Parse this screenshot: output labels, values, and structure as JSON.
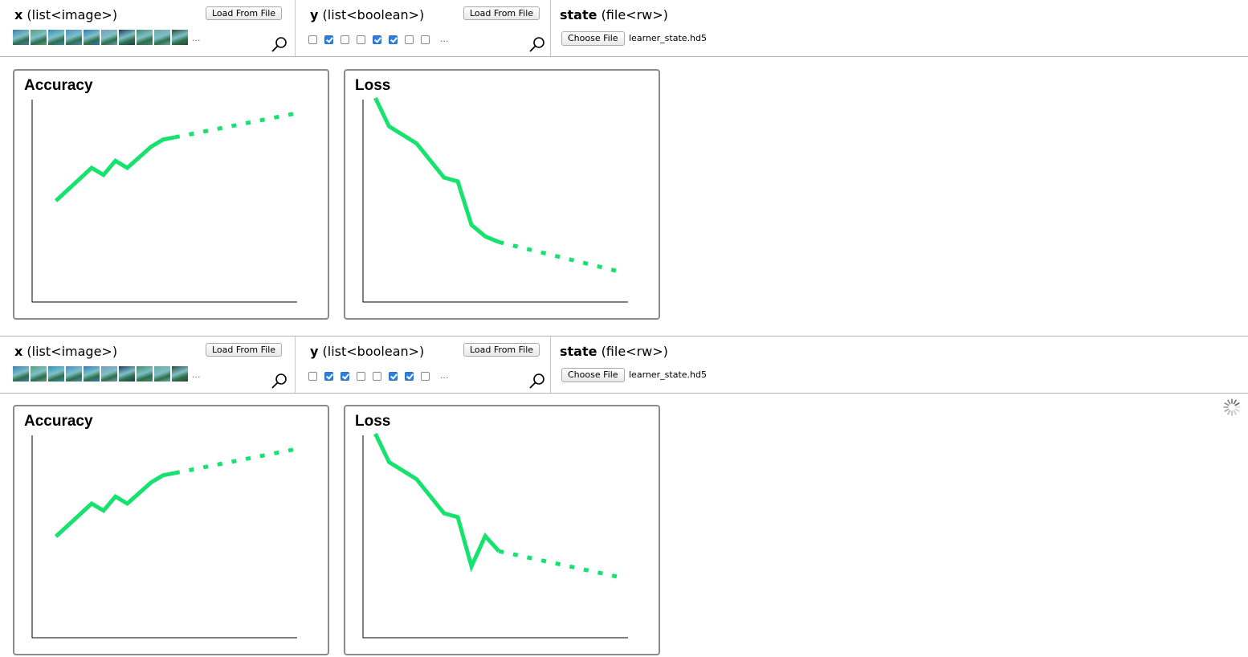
{
  "panels": [
    {
      "inputs": {
        "x": {
          "name": "x",
          "type": "(list<image>)",
          "load_label": "Load From File",
          "more": "..."
        },
        "y": {
          "name": "y",
          "type": "(list<boolean>)",
          "load_label": "Load From File",
          "more": "...",
          "checks": [
            false,
            true,
            false,
            false,
            true,
            true,
            false,
            false
          ]
        },
        "state": {
          "name": "state",
          "type": "(file<rw>)",
          "choose_label": "Choose File",
          "filename": "learner_state.hd5"
        }
      },
      "charts": [
        {
          "title": "Accuracy",
          "color": "#16e26e",
          "solid": [
            [
              0,
              0.43
            ],
            [
              3,
              0.57
            ],
            [
              4,
              0.54
            ],
            [
              5,
              0.6
            ],
            [
              6,
              0.57
            ],
            [
              8,
              0.66
            ],
            [
              9,
              0.69
            ],
            [
              10,
              0.7
            ]
          ],
          "dotted": [
            [
              10,
              0.7
            ],
            [
              20,
              0.8
            ]
          ]
        },
        {
          "title": "Loss",
          "color": "#16e26e",
          "solid": [
            [
              0,
              1.0
            ],
            [
              1,
              0.85
            ],
            [
              3,
              0.76
            ],
            [
              5,
              0.58
            ],
            [
              6,
              0.56
            ],
            [
              7,
              0.33
            ],
            [
              8,
              0.27
            ],
            [
              9,
              0.24
            ]
          ],
          "dotted": [
            [
              9,
              0.24
            ],
            [
              18,
              0.08
            ]
          ]
        }
      ]
    },
    {
      "inputs": {
        "x": {
          "name": "x",
          "type": "(list<image>)",
          "load_label": "Load From File",
          "more": "..."
        },
        "y": {
          "name": "y",
          "type": "(list<boolean>)",
          "load_label": "Load From File",
          "more": "...",
          "checks": [
            false,
            true,
            true,
            false,
            false,
            true,
            true,
            false
          ]
        },
        "state": {
          "name": "state",
          "type": "(file<rw>)",
          "choose_label": "Choose File",
          "filename": "learner_state.hd5"
        }
      },
      "charts": [
        {
          "title": "Accuracy",
          "color": "#16e26e",
          "solid": [
            [
              0,
              0.43
            ],
            [
              3,
              0.57
            ],
            [
              4,
              0.54
            ],
            [
              5,
              0.6
            ],
            [
              6,
              0.57
            ],
            [
              8,
              0.66
            ],
            [
              9,
              0.69
            ],
            [
              10,
              0.7
            ]
          ],
          "dotted": [
            [
              10,
              0.7
            ],
            [
              20,
              0.8
            ]
          ]
        },
        {
          "title": "Loss",
          "color": "#16e26e",
          "solid": [
            [
              0,
              1.0
            ],
            [
              1,
              0.85
            ],
            [
              3,
              0.76
            ],
            [
              5,
              0.58
            ],
            [
              6,
              0.56
            ],
            [
              7,
              0.3
            ],
            [
              8,
              0.46
            ],
            [
              9,
              0.38
            ]
          ],
          "dotted": [
            [
              9,
              0.38
            ],
            [
              18,
              0.24
            ]
          ]
        }
      ]
    }
  ],
  "thumb_colors": [
    "#3a7fb0",
    "#5a9d7a",
    "#2f8fb8",
    "#4a8ac9",
    "#2d7bb6",
    "#7a9ab5",
    "#1e3a58",
    "#3e8a6a",
    "#6aa8a0",
    "#274a38"
  ],
  "icons": {
    "search": "magnifier-icon",
    "spinner": "loading-spinner-icon"
  }
}
